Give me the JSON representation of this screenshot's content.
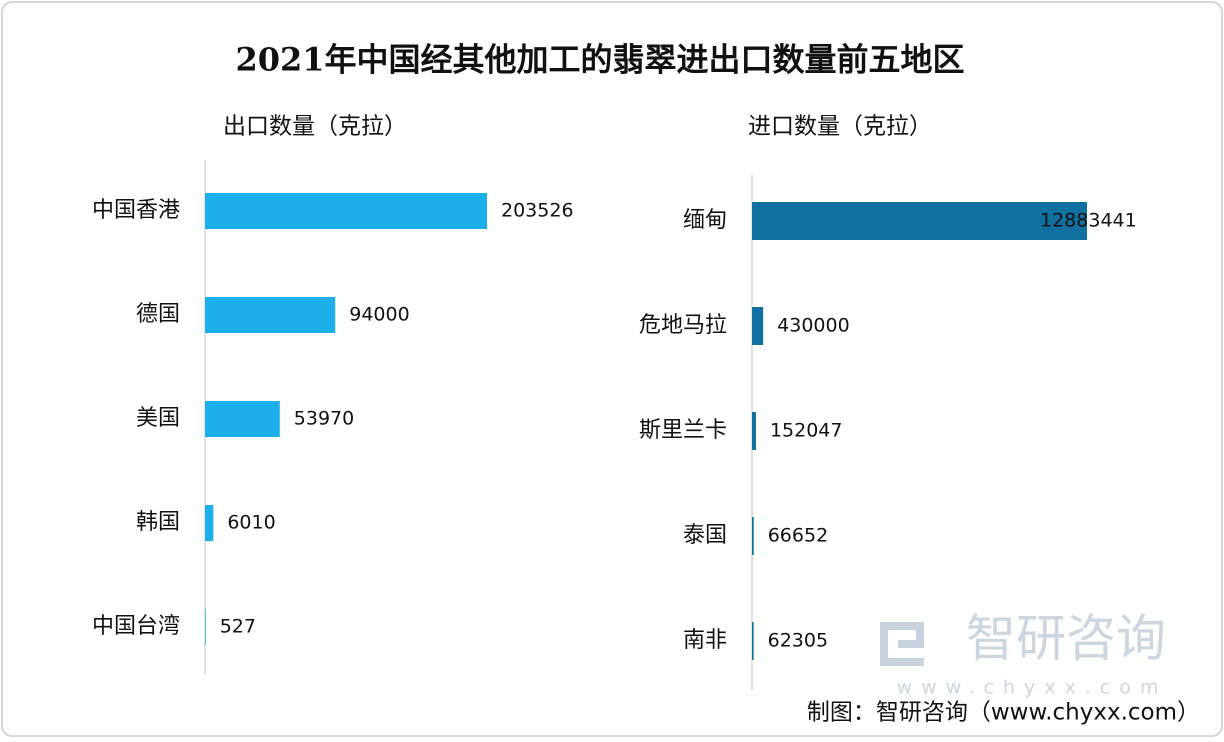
{
  "title": "2021年中国经其他加工的翡翠进出口数量前五地区",
  "chart_data": [
    {
      "type": "bar",
      "orientation": "horizontal",
      "title": "出口数量（克拉）",
      "categories": [
        "中国香港",
        "德国",
        "美国",
        "韩国",
        "中国台湾"
      ],
      "values": [
        203526,
        94000,
        53970,
        6010,
        527
      ],
      "color": "#1cafea"
    },
    {
      "type": "bar",
      "orientation": "horizontal",
      "title": "进口数量（克拉）",
      "categories": [
        "缅甸",
        "危地马拉",
        "斯里兰卡",
        "泰国",
        "南非"
      ],
      "values": [
        12883441,
        430000,
        152047,
        66652,
        62305
      ],
      "color": "#11709f"
    }
  ],
  "watermark": {
    "brand": "智研咨询",
    "url": "www.chyxx.com"
  },
  "source": "制图：智研咨询（www.chyxx.com）"
}
